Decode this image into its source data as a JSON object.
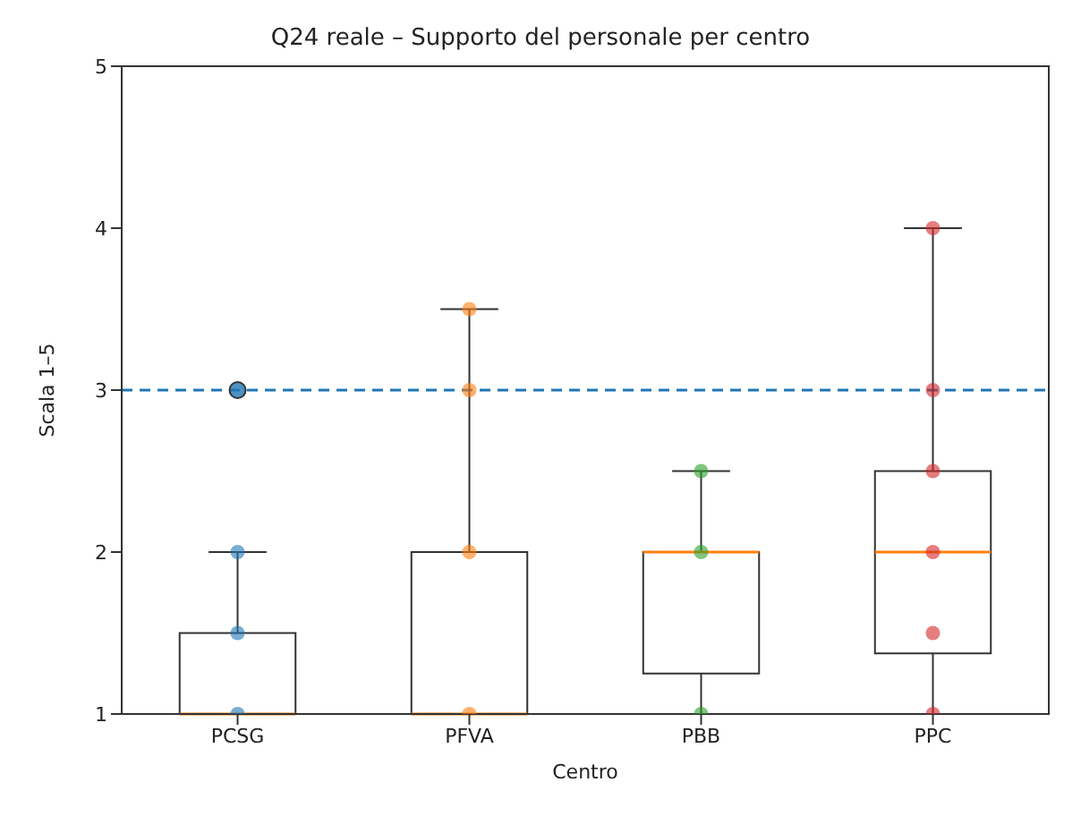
{
  "chart_data": {
    "type": "box",
    "title": "Q24 reale – Supporto del personale per centro",
    "xlabel": "Centro",
    "ylabel": "Scala 1–5",
    "categories": [
      "PCSG",
      "PFVA",
      "PBB",
      "PPC"
    ],
    "boxes": [
      {
        "low": 1,
        "q1": 1,
        "median": 1,
        "q3": 1.5,
        "high": 2,
        "outliers": [
          3
        ]
      },
      {
        "low": 1,
        "q1": 1,
        "median": 1,
        "q3": 2,
        "high": 3.5
      },
      {
        "low": 1,
        "q1": 1.25,
        "median": 2,
        "q3": 2,
        "high": 2.5
      },
      {
        "low": 1,
        "q1": 1.375,
        "median": 2,
        "q3": 2.5,
        "high": 4
      }
    ],
    "series": [
      {
        "type": "scatter",
        "color": "#1f77b4",
        "x": [
          "PCSG",
          "PCSG",
          "PCSG"
        ],
        "values": [
          1,
          1.5,
          2
        ]
      },
      {
        "type": "scatter",
        "color": "#ff7f0e",
        "x": [
          "PFVA",
          "PFVA",
          "PFVA",
          "PFVA"
        ],
        "values": [
          1,
          2,
          3,
          3.5
        ]
      },
      {
        "type": "scatter",
        "color": "#2ca02c",
        "x": [
          "PBB",
          "PBB",
          "PBB"
        ],
        "values": [
          1,
          2,
          2.5
        ]
      },
      {
        "type": "scatter",
        "color": "#d62728",
        "x": [
          "PPC",
          "PPC",
          "PPC",
          "PPC",
          "PPC",
          "PPC"
        ],
        "values": [
          1,
          1.5,
          2,
          2.5,
          3,
          4
        ]
      }
    ],
    "ylim": [
      1,
      5
    ],
    "yticks": [
      1,
      2,
      3,
      4,
      5
    ],
    "grid": false,
    "legend": false,
    "marker": "circle",
    "ref_lines": [
      {
        "axis": "y",
        "value": 3,
        "color": "#1f77b4",
        "line_style": "dashed"
      }
    ]
  }
}
